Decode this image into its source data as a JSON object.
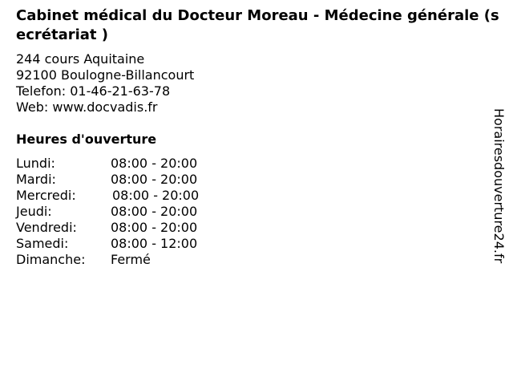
{
  "title": "Cabinet médical du Docteur Moreau - Médecine générale (secrétariat )",
  "address": {
    "street": "244 cours Aquitaine",
    "city": "92100 Boulogne-Billancourt",
    "phone": "Telefon: 01-46-21-63-78",
    "web": "Web: www.docvadis.fr"
  },
  "hours_title": "Heures d'ouverture",
  "hours": [
    {
      "day": "Lundi:",
      "time": "08:00 - 20:00"
    },
    {
      "day": "Mardi:",
      "time": "08:00 - 20:00"
    },
    {
      "day": "Mercredi:",
      "time": "08:00 - 20:00"
    },
    {
      "day": "Jeudi:",
      "time": "08:00 - 20:00"
    },
    {
      "day": "Vendredi:",
      "time": "08:00 - 20:00"
    },
    {
      "day": "Samedi:",
      "time": "08:00 - 12:00"
    },
    {
      "day": "Dimanche:",
      "time": "Fermé"
    }
  ],
  "side_brand": "Horairesdouverture24.fr"
}
